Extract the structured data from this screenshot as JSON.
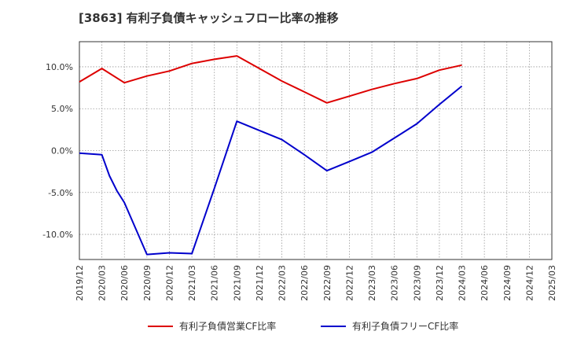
{
  "chart_data": {
    "type": "line",
    "title": "[3863]  有利子負債キャッシュフロー比率の推移",
    "xlabel": "",
    "ylabel": "",
    "x_ticks": [
      "2019/12",
      "2020/03",
      "2020/06",
      "2020/09",
      "2020/12",
      "2021/03",
      "2021/06",
      "2021/09",
      "2021/12",
      "2022/03",
      "2022/06",
      "2022/09",
      "2022/12",
      "2023/03",
      "2023/06",
      "2023/09",
      "2023/12",
      "2024/03",
      "2024/06",
      "2024/09",
      "2024/12",
      "2025/03"
    ],
    "y_ticks": [
      10,
      5,
      0,
      -5,
      -10
    ],
    "y_tick_labels": [
      "10.0%",
      "5.0%",
      "0.0%",
      "-5.0%",
      "-10.0%"
    ],
    "ylim": [
      -13,
      13
    ],
    "grid": true,
    "legend_position": "bottom",
    "series": [
      {
        "name": "有利子負債営業CF比率",
        "color": "#dd0000",
        "points": [
          {
            "x": "2019/12",
            "y": 8.2
          },
          {
            "x": "2020/03",
            "y": 9.8
          },
          {
            "x": "2020/06",
            "y": 8.1
          },
          {
            "x": "2020/09",
            "y": 8.9
          },
          {
            "x": "2020/12",
            "y": 9.5
          },
          {
            "x": "2021/03",
            "y": 10.4
          },
          {
            "x": "2021/06",
            "y": 10.9
          },
          {
            "x": "2021/09",
            "y": 11.3
          },
          {
            "x": "2021/12",
            "y": 9.8
          },
          {
            "x": "2022/03",
            "y": 8.3
          },
          {
            "x": "2022/06",
            "y": 7.0
          },
          {
            "x": "2022/09",
            "y": 5.7
          },
          {
            "x": "2022/12",
            "y": 6.5
          },
          {
            "x": "2023/03",
            "y": 7.3
          },
          {
            "x": "2023/06",
            "y": 8.0
          },
          {
            "x": "2023/09",
            "y": 8.6
          },
          {
            "x": "2023/12",
            "y": 9.6
          },
          {
            "x": "2024/03",
            "y": 10.2
          }
        ]
      },
      {
        "name": "有利子負債フリーCF比率",
        "color": "#0000cc",
        "points": [
          {
            "x": "2019/12",
            "y": -0.3
          },
          {
            "x": "2020/03",
            "y": -0.5
          },
          {
            "x": "2020/04",
            "y": -3.0
          },
          {
            "x": "2020/05",
            "y": -4.8
          },
          {
            "x": "2020/06",
            "y": -6.2
          },
          {
            "x": "2020/09",
            "y": -12.4
          },
          {
            "x": "2020/12",
            "y": -12.2
          },
          {
            "x": "2021/03",
            "y": -12.3
          },
          {
            "x": "2021/06",
            "y": -4.5
          },
          {
            "x": "2021/09",
            "y": 3.5
          },
          {
            "x": "2021/12",
            "y": 2.4
          },
          {
            "x": "2022/03",
            "y": 1.3
          },
          {
            "x": "2022/06",
            "y": -0.5
          },
          {
            "x": "2022/09",
            "y": -2.4
          },
          {
            "x": "2022/12",
            "y": -1.3
          },
          {
            "x": "2023/03",
            "y": -0.2
          },
          {
            "x": "2023/06",
            "y": 1.5
          },
          {
            "x": "2023/09",
            "y": 3.2
          },
          {
            "x": "2023/12",
            "y": 5.5
          },
          {
            "x": "2024/03",
            "y": 7.7
          }
        ]
      }
    ]
  }
}
